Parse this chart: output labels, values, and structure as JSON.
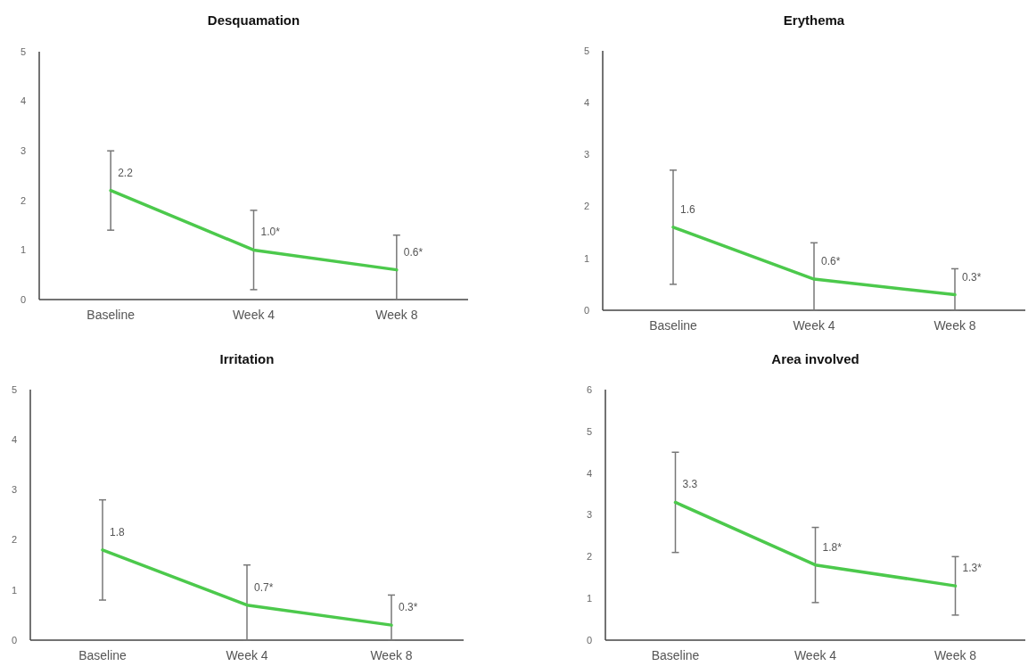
{
  "chart_data": [
    {
      "type": "line",
      "title": "Desquamation",
      "categories": [
        "Baseline",
        "Week 4",
        "Week 8"
      ],
      "ylim": [
        0,
        5
      ],
      "yticks": [
        0,
        1,
        2,
        3,
        4,
        5
      ],
      "line_style": "solid",
      "series": [
        {
          "color": "#4cc94c",
          "values": [
            2.2,
            1.0,
            0.6
          ],
          "errors": [
            0.8,
            0.8,
            [
              0,
              1.3
            ]
          ],
          "value_labels": [
            "2.2",
            "1.0*",
            "0.6*"
          ]
        }
      ]
    },
    {
      "type": "line",
      "title": "Erythema",
      "categories": [
        "Baseline",
        "Week 4",
        "Week 8"
      ],
      "ylim": [
        0,
        5
      ],
      "yticks": [
        0,
        1,
        2,
        3,
        4,
        5
      ],
      "line_style": "solid",
      "series": [
        {
          "color": "#4cc94c",
          "values": [
            1.6,
            0.6,
            0.3
          ],
          "errors": [
            1.1,
            [
              0,
              1.3
            ],
            [
              0,
              0.8
            ]
          ],
          "value_labels": [
            "1.6",
            "0.6*",
            "0.3*"
          ]
        }
      ]
    },
    {
      "type": "line",
      "title": "Irritation",
      "categories": [
        "Baseline",
        "Week 4",
        "Week 8"
      ],
      "ylim": [
        0,
        5
      ],
      "yticks": [
        0,
        1,
        2,
        3,
        4,
        5
      ],
      "line_style": "solid",
      "series": [
        {
          "color": "#4cc94c",
          "values": [
            1.8,
            0.7,
            0.3
          ],
          "errors": [
            1.0,
            [
              0,
              1.5
            ],
            [
              0,
              0.9
            ]
          ],
          "value_labels": [
            "1.8",
            "0.7*",
            "0.3*"
          ]
        }
      ]
    },
    {
      "type": "line",
      "title": "Area involved",
      "categories": [
        "Baseline",
        "Week 4",
        "Week 8"
      ],
      "ylim": [
        0,
        6
      ],
      "yticks": [
        0,
        1,
        2,
        3,
        4,
        5,
        6
      ],
      "line_style": "solid",
      "series": [
        {
          "color": "#4cc94c",
          "values": [
            3.3,
            1.8,
            1.3
          ],
          "errors": [
            1.2,
            0.9,
            0.7
          ],
          "value_labels": [
            "3.3",
            "1.8*",
            "1.3*"
          ]
        }
      ]
    }
  ]
}
